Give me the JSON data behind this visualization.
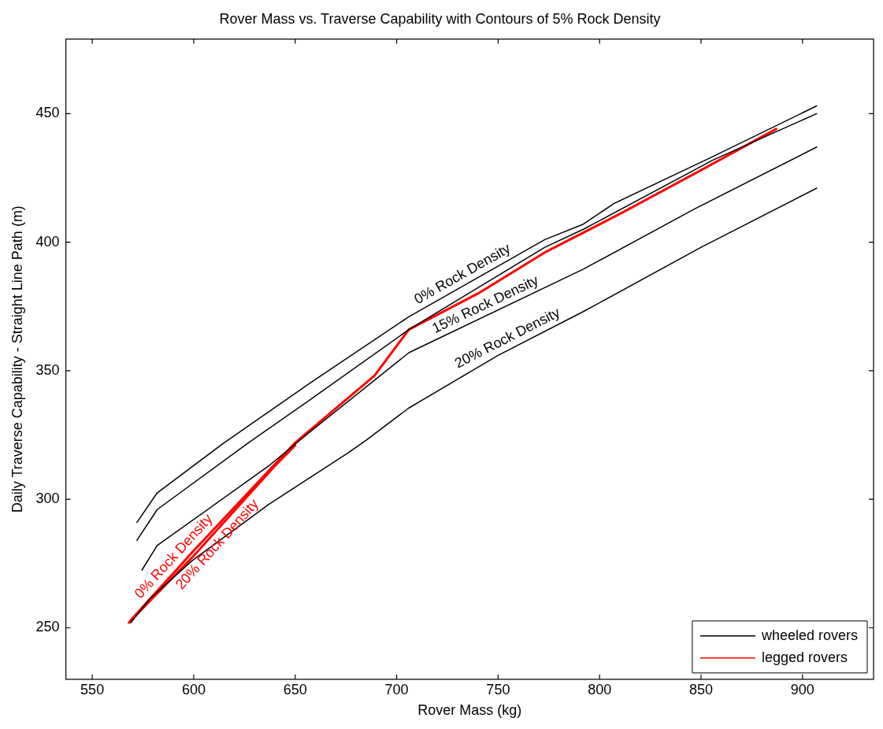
{
  "chart_data": {
    "type": "line",
    "title": "Rover Mass vs. Traverse Capability with Contours of 5% Rock Density",
    "xlabel": "Rover Mass (kg)",
    "ylabel": "Daily Traverse Capability - Straight Line Path (m)",
    "xlim": [
      537,
      935
    ],
    "xticks": [
      550,
      600,
      650,
      700,
      750,
      800,
      850,
      900
    ],
    "ylim": [
      230,
      479
    ],
    "yticks": [
      250,
      300,
      350,
      400,
      450
    ],
    "grid": false,
    "legend": "bottom right",
    "marker": "none",
    "line_style": "solid",
    "series": [
      {
        "name": "wheeled rovers",
        "color": "#000000",
        "x": [
          572,
          582,
          615,
          657,
          706,
          773,
          792,
          807,
          855,
          907
        ],
        "values": [
          291,
          302.5,
          322,
          345,
          371,
          401,
          407,
          415,
          433,
          453
        ]
      },
      {
        "color": "#000000",
        "x": [
          572,
          582,
          627,
          657,
          706,
          773,
          792,
          856,
          907
        ],
        "values": [
          284,
          296,
          322,
          338.5,
          366,
          398,
          405,
          432,
          450
        ]
      },
      {
        "color": "#000000",
        "x": [
          574.5,
          582,
          637,
          657,
          706,
          792,
          847,
          907
        ],
        "values": [
          272.5,
          282,
          313,
          326,
          357,
          389.5,
          413,
          437
        ]
      },
      {
        "color": "#000000",
        "x": [
          569,
          578,
          599,
          637,
          676,
          685,
          706,
          750,
          792,
          850,
          907
        ],
        "values": [
          252,
          261,
          276,
          298,
          318,
          323,
          335.5,
          356,
          373,
          398,
          421
        ]
      },
      {
        "name": "legged rovers",
        "color": "#ff0000",
        "x": [
          569,
          600,
          650,
          689,
          706,
          740,
          773,
          810,
          850,
          887
        ],
        "values": [
          253,
          280,
          322,
          348,
          366,
          380,
          396,
          411,
          428,
          444
        ]
      },
      {
        "color": "#ff0000",
        "x": [
          568,
          600,
          640,
          650
        ],
        "values": [
          252,
          278,
          313,
          321
        ]
      }
    ],
    "annotations": [
      {
        "text": "0% Rock Density",
        "x": 735,
        "y": 384
      },
      {
        "text": "15% Rock Density",
        "x": 746,
        "y": 372
      },
      {
        "text": "20% Rock Density",
        "x": 757,
        "y": 359
      },
      {
        "text": "0% Rock Density",
        "x": 594,
        "y": 275
      },
      {
        "text": "20% Rock Density",
        "x": 608,
        "y": 285
      }
    ]
  }
}
